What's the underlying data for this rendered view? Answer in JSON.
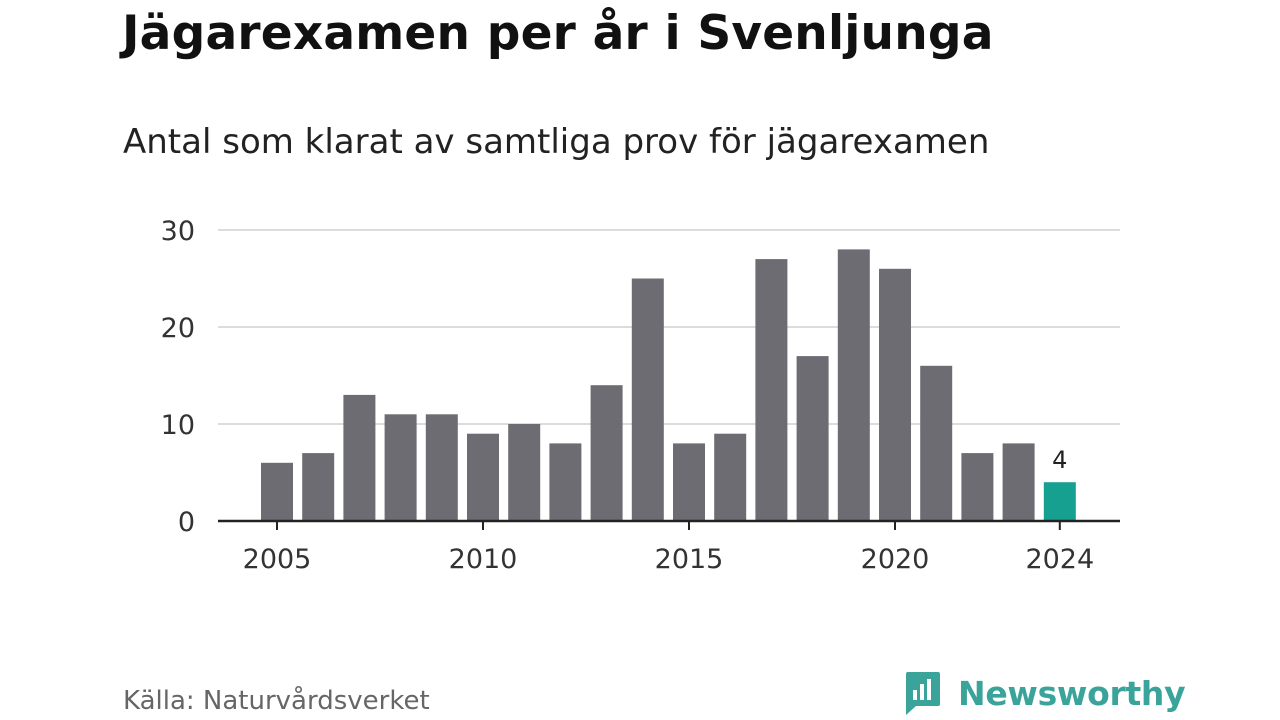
{
  "header": {
    "title": "Jägarexamen per år i Svenljunga",
    "subtitle": "Antal som klarat av samtliga prov för jägarexamen"
  },
  "footer": {
    "source": "Källa: Naturvårdsverket",
    "brand": "Newsworthy",
    "brand_icon": "bar-chart-speech-bubble-icon"
  },
  "colors": {
    "bar": "#6d6c73",
    "highlight": "#16a090",
    "grid": "#dcdcdc",
    "axis": "#222222",
    "brand": "#3aa39a"
  },
  "chart_data": {
    "type": "bar",
    "title": "Jägarexamen per år i Svenljunga",
    "subtitle": "Antal som klarat av samtliga prov för jägarexamen",
    "xlabel": "",
    "ylabel": "",
    "x": [
      2005,
      2006,
      2007,
      2008,
      2009,
      2010,
      2011,
      2012,
      2013,
      2014,
      2015,
      2016,
      2017,
      2018,
      2019,
      2020,
      2021,
      2022,
      2023,
      2024
    ],
    "values": [
      6,
      7,
      13,
      11,
      11,
      9,
      10,
      8,
      14,
      25,
      8,
      9,
      27,
      17,
      28,
      26,
      16,
      7,
      8,
      4
    ],
    "ylim": [
      0,
      30
    ],
    "y_ticks": [
      0,
      10,
      20,
      30
    ],
    "x_ticks": [
      2005,
      2010,
      2015,
      2020,
      2024
    ],
    "highlight": {
      "x": 2024,
      "label": "4"
    },
    "grid": true,
    "legend": "none"
  }
}
